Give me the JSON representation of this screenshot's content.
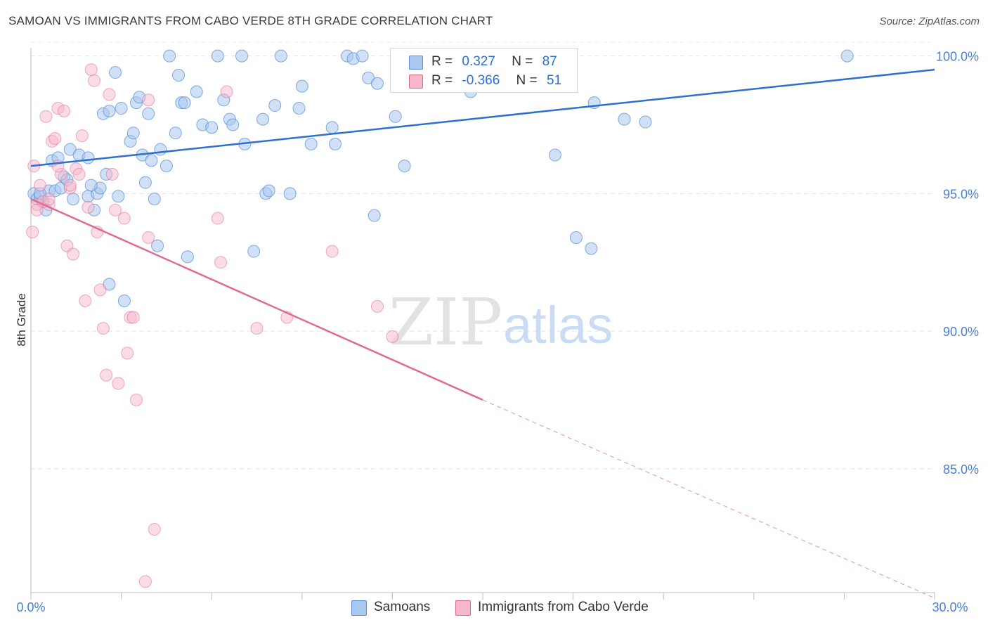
{
  "title": "SAMOAN VS IMMIGRANTS FROM CABO VERDE 8TH GRADE CORRELATION CHART",
  "source": "Source: ZipAtlas.com",
  "watermark": {
    "zip": "ZIP",
    "atlas": "atlas"
  },
  "legend": {
    "rows": [
      {
        "r_label": "R =",
        "r_value": "0.327",
        "n_label": "N =",
        "n_value": "87",
        "color": "#a9c8f0"
      },
      {
        "r_label": "R =",
        "r_value": "-0.366",
        "n_label": "N =",
        "n_value": "51",
        "color": "#f7b8cc"
      }
    ]
  },
  "bottom_legend": [
    {
      "label": "Samoans",
      "color": "#a9c8f0"
    },
    {
      "label": "Immigrants from Cabo Verde",
      "color": "#f7b8cc"
    }
  ],
  "chart_data": {
    "type": "scatter",
    "title": "SAMOAN VS IMMIGRANTS FROM CABO VERDE 8TH GRADE CORRELATION CHART",
    "xlabel": "",
    "ylabel": "8th Grade",
    "xlim": [
      0,
      30
    ],
    "ylim": [
      80.5,
      100.5
    ],
    "x_tick_labels": [
      "0.0%",
      "30.0%"
    ],
    "y_ticks": [
      85,
      90,
      95,
      100
    ],
    "y_tick_labels": [
      "85.0%",
      "90.0%",
      "95.0%",
      "100.0%"
    ],
    "grid": true,
    "colors": {
      "samoans": "#5b8fd8",
      "samoans_fill": "#a9c8f0",
      "cabo": "#e06a94",
      "cabo_fill": "#f7b8cc"
    },
    "series": [
      {
        "name": "Samoans",
        "trend": {
          "x": [
            0,
            30
          ],
          "y": [
            96.0,
            99.5
          ],
          "style": "solid"
        },
        "points": [
          [
            0.1,
            95.0
          ],
          [
            0.2,
            94.8
          ],
          [
            0.3,
            94.9
          ],
          [
            0.4,
            94.7
          ],
          [
            0.5,
            94.4
          ],
          [
            0.6,
            95.1
          ],
          [
            0.7,
            96.2
          ],
          [
            0.8,
            95.1
          ],
          [
            0.9,
            96.3
          ],
          [
            1.0,
            95.2
          ],
          [
            1.1,
            95.6
          ],
          [
            1.2,
            95.5
          ],
          [
            1.3,
            96.6
          ],
          [
            1.4,
            94.8
          ],
          [
            1.6,
            96.4
          ],
          [
            1.9,
            96.3
          ],
          [
            1.9,
            94.9
          ],
          [
            2.2,
            95.0
          ],
          [
            2.1,
            94.4
          ],
          [
            2.3,
            95.2
          ],
          [
            2.4,
            97.9
          ],
          [
            2.5,
            95.7
          ],
          [
            2.6,
            98.0
          ],
          [
            2.6,
            91.7
          ],
          [
            2.8,
            99.4
          ],
          [
            2.9,
            94.9
          ],
          [
            3.0,
            98.1
          ],
          [
            3.1,
            91.1
          ],
          [
            3.3,
            96.9
          ],
          [
            3.4,
            97.2
          ],
          [
            3.5,
            98.3
          ],
          [
            3.6,
            98.5
          ],
          [
            3.7,
            96.4
          ],
          [
            3.8,
            95.4
          ],
          [
            3.9,
            97.9
          ],
          [
            4.0,
            96.2
          ],
          [
            4.1,
            94.8
          ],
          [
            4.2,
            93.1
          ],
          [
            4.3,
            96.6
          ],
          [
            4.5,
            96.0
          ],
          [
            4.6,
            100.0
          ],
          [
            4.8,
            97.2
          ],
          [
            4.9,
            99.3
          ],
          [
            5.0,
            98.3
          ],
          [
            5.1,
            98.3
          ],
          [
            5.2,
            92.7
          ],
          [
            5.5,
            98.7
          ],
          [
            5.7,
            97.5
          ],
          [
            6.0,
            97.4
          ],
          [
            6.2,
            100.0
          ],
          [
            6.4,
            98.4
          ],
          [
            6.6,
            97.7
          ],
          [
            6.7,
            97.5
          ],
          [
            7.0,
            100.0
          ],
          [
            7.1,
            96.8
          ],
          [
            7.4,
            92.9
          ],
          [
            7.7,
            97.7
          ],
          [
            7.8,
            95.0
          ],
          [
            7.9,
            95.1
          ],
          [
            8.1,
            98.2
          ],
          [
            8.3,
            100.0
          ],
          [
            8.6,
            95.0
          ],
          [
            8.9,
            98.1
          ],
          [
            9.0,
            98.9
          ],
          [
            9.3,
            96.8
          ],
          [
            10.0,
            97.4
          ],
          [
            10.1,
            96.8
          ],
          [
            10.5,
            100.0
          ],
          [
            10.7,
            99.9
          ],
          [
            11.0,
            100.0
          ],
          [
            11.2,
            99.2
          ],
          [
            11.5,
            99.0
          ],
          [
            11.4,
            94.2
          ],
          [
            12.1,
            97.8
          ],
          [
            12.4,
            96.0
          ],
          [
            13.0,
            100.0
          ],
          [
            14.0,
            100.0
          ],
          [
            14.6,
            98.7
          ],
          [
            17.4,
            96.4
          ],
          [
            18.1,
            93.4
          ],
          [
            18.6,
            93.0
          ],
          [
            18.7,
            98.3
          ],
          [
            19.7,
            97.7
          ],
          [
            20.4,
            97.6
          ],
          [
            27.1,
            100.0
          ],
          [
            0.3,
            95.0
          ],
          [
            2.0,
            95.3
          ]
        ]
      },
      {
        "name": "Immigrants from Cabo Verde",
        "trend": {
          "x": [
            0,
            15
          ],
          "y": [
            94.8,
            87.5
          ],
          "style": "solid",
          "extended_x": [
            15,
            30
          ],
          "extended_y": [
            87.5,
            80.3
          ],
          "extended_style": "dashed"
        },
        "points": [
          [
            0.05,
            93.6
          ],
          [
            0.1,
            96.0
          ],
          [
            0.2,
            94.6
          ],
          [
            0.3,
            95.3
          ],
          [
            0.4,
            94.7
          ],
          [
            0.5,
            97.8
          ],
          [
            0.6,
            94.6
          ],
          [
            0.7,
            96.9
          ],
          [
            0.8,
            97.0
          ],
          [
            0.9,
            98.1
          ],
          [
            1.0,
            95.7
          ],
          [
            1.1,
            98.0
          ],
          [
            1.2,
            93.1
          ],
          [
            1.3,
            95.2
          ],
          [
            1.4,
            92.8
          ],
          [
            1.5,
            95.9
          ],
          [
            1.6,
            95.7
          ],
          [
            1.7,
            97.1
          ],
          [
            1.8,
            91.1
          ],
          [
            1.9,
            94.5
          ],
          [
            2.0,
            99.5
          ],
          [
            2.1,
            99.1
          ],
          [
            2.2,
            93.6
          ],
          [
            2.3,
            91.5
          ],
          [
            2.4,
            90.1
          ],
          [
            2.5,
            88.4
          ],
          [
            2.6,
            98.6
          ],
          [
            2.7,
            95.7
          ],
          [
            2.8,
            94.4
          ],
          [
            2.9,
            88.1
          ],
          [
            3.1,
            94.1
          ],
          [
            3.2,
            89.2
          ],
          [
            3.3,
            90.5
          ],
          [
            3.4,
            90.5
          ],
          [
            3.5,
            87.5
          ],
          [
            3.9,
            93.4
          ],
          [
            3.9,
            98.4
          ],
          [
            4.1,
            82.8
          ],
          [
            3.8,
            80.9
          ],
          [
            6.2,
            94.1
          ],
          [
            6.3,
            92.5
          ],
          [
            6.5,
            98.7
          ],
          [
            7.5,
            90.1
          ],
          [
            8.5,
            90.5
          ],
          [
            10.0,
            92.9
          ],
          [
            11.5,
            90.9
          ],
          [
            12.0,
            89.8
          ],
          [
            0.6,
            94.8
          ],
          [
            0.9,
            96.0
          ],
          [
            1.3,
            95.3
          ],
          [
            0.2,
            94.4
          ]
        ]
      }
    ]
  }
}
